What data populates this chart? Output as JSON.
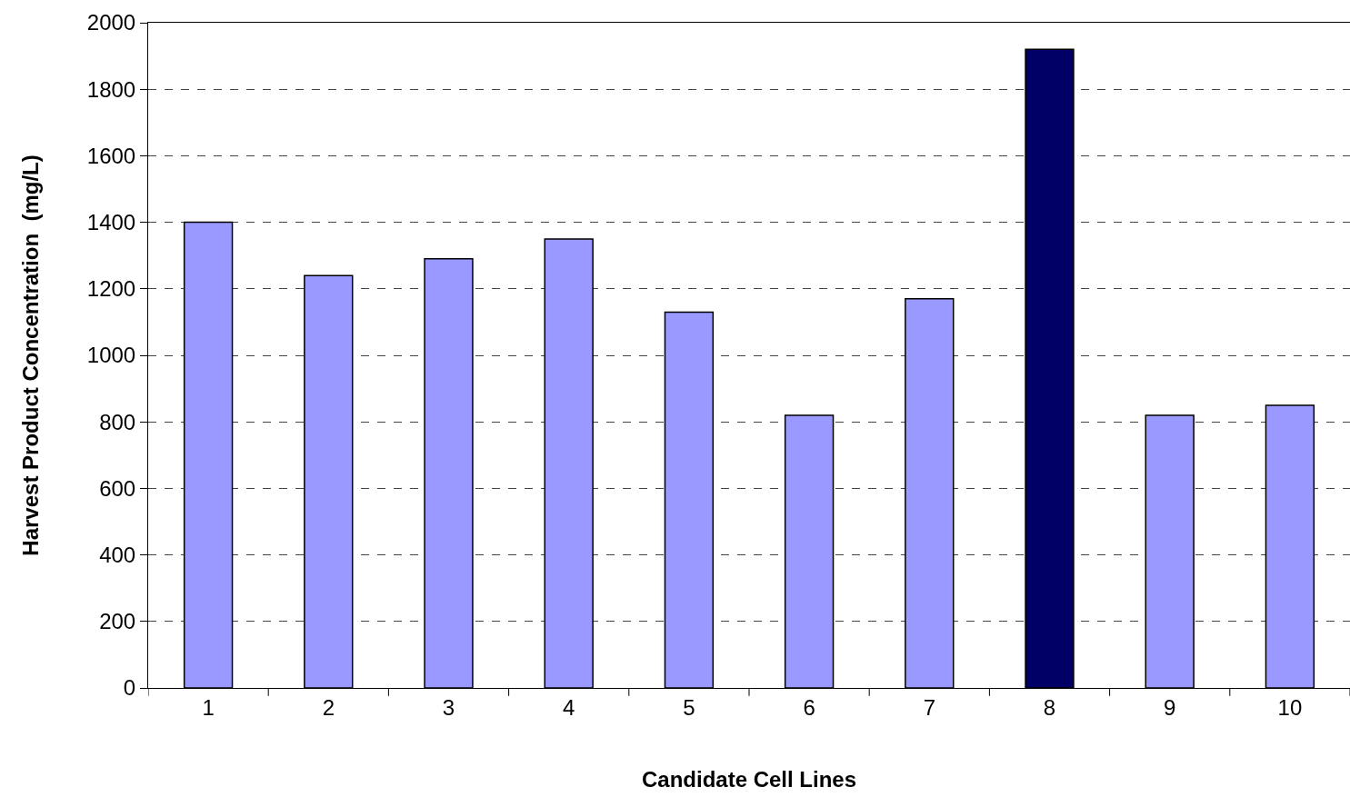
{
  "chart_data": {
    "type": "bar",
    "xlabel": "Candidate Cell Lines",
    "ylabel": "Harvest Product Concentration  (mg/L)",
    "categories": [
      "1",
      "2",
      "3",
      "4",
      "5",
      "6",
      "7",
      "8",
      "9",
      "10"
    ],
    "values": [
      1400,
      1240,
      1290,
      1350,
      1130,
      820,
      1170,
      1920,
      820,
      850
    ],
    "colors": [
      "#9999ff",
      "#9999ff",
      "#9999ff",
      "#9999ff",
      "#9999ff",
      "#9999ff",
      "#9999ff",
      "#000066",
      "#9999ff",
      "#9999ff"
    ],
    "ylim": [
      0,
      2000
    ],
    "yticks": [
      0,
      200,
      400,
      600,
      800,
      1000,
      1200,
      1400,
      1600,
      1800,
      2000
    ],
    "grid": "y"
  }
}
